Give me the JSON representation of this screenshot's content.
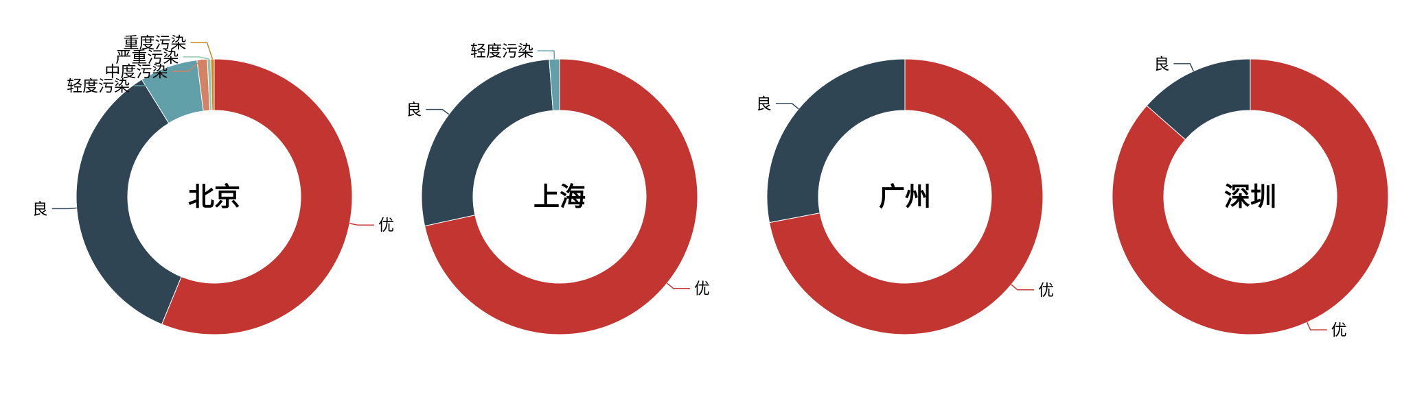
{
  "chart_data": [
    {
      "type": "pie",
      "title": "北京",
      "colors": [
        "#c23531",
        "#2f4554",
        "#61a0a8",
        "#d48265",
        "#91c7ae",
        "#ca8622"
      ],
      "series": [
        {
          "name": "优",
          "value": 56.2
        },
        {
          "name": "良",
          "value": 35.0
        },
        {
          "name": "轻度污染",
          "value": 6.8
        },
        {
          "name": "中度污染",
          "value": 1.2
        },
        {
          "name": "严重污染",
          "value": 0.4
        },
        {
          "name": "重度污染",
          "value": 0.4
        }
      ]
    },
    {
      "type": "pie",
      "title": "上海",
      "colors": [
        "#c23531",
        "#2f4554",
        "#61a0a8"
      ],
      "series": [
        {
          "name": "优",
          "value": 71.6
        },
        {
          "name": "良",
          "value": 27.2
        },
        {
          "name": "轻度污染",
          "value": 1.2
        }
      ]
    },
    {
      "type": "pie",
      "title": "广州",
      "colors": [
        "#c23531",
        "#2f4554"
      ],
      "series": [
        {
          "name": "优",
          "value": 72.0
        },
        {
          "name": "良",
          "value": 28.0
        }
      ]
    },
    {
      "type": "pie",
      "title": "深圳",
      "colors": [
        "#c23531",
        "#2f4554"
      ],
      "series": [
        {
          "name": "优",
          "value": 86.5
        },
        {
          "name": "良",
          "value": 13.5
        }
      ]
    }
  ]
}
